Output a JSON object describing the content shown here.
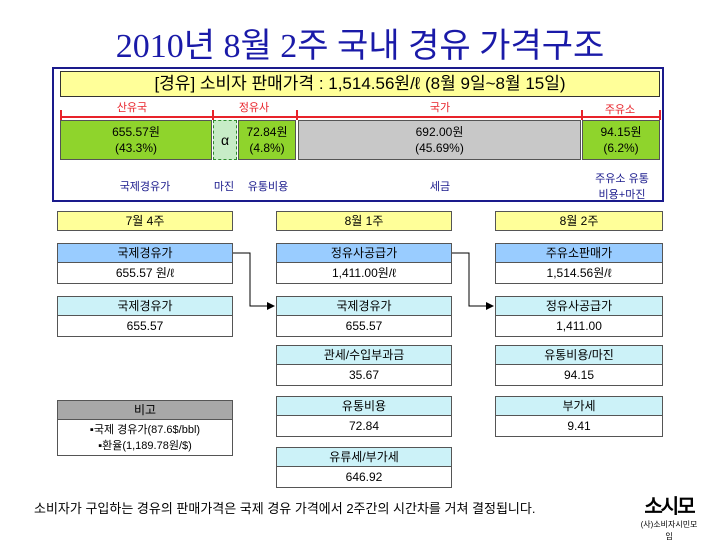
{
  "title": "2010년 8월 2주 국내 경유 가격구조",
  "header": "[경유] 소비자 판매가격 : 1,514.56원/ℓ (8월 9일~8월 15일)",
  "top_labels": [
    "산유국",
    "정유사",
    "국가",
    "주유소"
  ],
  "segments": [
    {
      "value": "655.57원",
      "pct": "(43.3%)"
    },
    {
      "symbol": "α"
    },
    {
      "value": "72.84원",
      "pct": "(4.8%)"
    },
    {
      "value": "692.00원",
      "pct": "(45.69%)"
    },
    {
      "value": "94.15원",
      "pct": "(6.2%)"
    }
  ],
  "bottom_labels": [
    "국제경유가",
    "마진",
    "유통비용",
    "세금",
    "주유소 유통",
    "비용+마진"
  ],
  "weeks": [
    "7월 4주",
    "8월 1주",
    "8월 2주"
  ],
  "col1": [
    {
      "head": "국제경유가",
      "val": "655.57 원/ℓ"
    },
    {
      "head": "국제경유가",
      "val": "655.57"
    }
  ],
  "col2": [
    {
      "head": "정유사공급가",
      "val": "1,411.00원/ℓ"
    },
    {
      "head": "국제경유가",
      "val": "655.57"
    },
    {
      "head": "관세/수입부과금",
      "val": "35.67"
    },
    {
      "head": "유통비용",
      "val": "72.84"
    },
    {
      "head": "유류세/부가세",
      "val": "646.92"
    }
  ],
  "col3": [
    {
      "head": "주유소판매가",
      "val": "1,514.56원/ℓ"
    },
    {
      "head": "정유사공급가",
      "val": "1,411.00"
    },
    {
      "head": "유통비용/마진",
      "val": "94.15"
    },
    {
      "head": "부가세",
      "val": "9.41"
    }
  ],
  "remark": {
    "head": "비고",
    "lines": [
      "▪국제 경유가(87.6$/bbl)",
      "▪환율(1,189.78원/$)"
    ]
  },
  "note": "소비자가 구입하는 경유의 판매가격은 국제 경유 가격에서 2주간의 시간차를 거쳐 결정됩니다.",
  "logo": {
    "mark": "소시모",
    "caption": "(사)소비자시민모임"
  },
  "colors": {
    "title": "#1a1aa8",
    "green": "#8fd42c",
    "gray": "#c8c8c8",
    "yellow": "#ffff99",
    "blue": "#99ccff",
    "light_blue": "#ccf2f8",
    "red": "#e8232a"
  }
}
